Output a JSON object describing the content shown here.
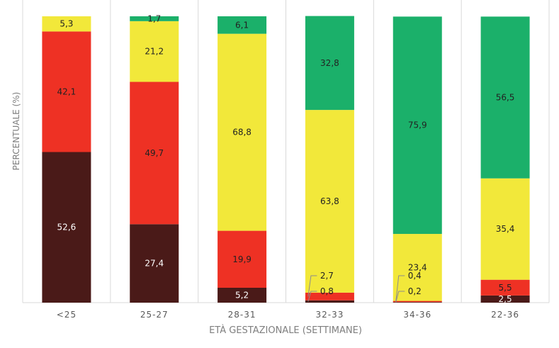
{
  "chart_data": {
    "type": "bar",
    "stacked": true,
    "title": "",
    "xlabel": "ETÀ GESTAZIONALE (SETTIMANE)",
    "ylabel": "PERCENTUALE (%)",
    "ylim": [
      0,
      100
    ],
    "categories": [
      "<25",
      "25-27",
      "28-31",
      "32-33",
      "34-36",
      "22-36"
    ],
    "series": [
      {
        "name": "dark-red",
        "color": "#4a1a18",
        "values": [
          52.6,
          27.4,
          5.2,
          0.8,
          0.2,
          2.5
        ],
        "labels": [
          "52,6",
          "27,4",
          "5,2",
          "",
          "",
          "2,5"
        ]
      },
      {
        "name": "red",
        "color": "#ee3124",
        "values": [
          42.1,
          49.7,
          19.9,
          2.7,
          0.4,
          5.5
        ],
        "labels": [
          "42,1",
          "49,7",
          "19,9",
          "",
          "",
          "5,5"
        ]
      },
      {
        "name": "yellow",
        "color": "#f2e83a",
        "values": [
          5.3,
          21.2,
          68.8,
          63.8,
          23.4,
          35.4
        ],
        "labels": [
          "5,3",
          "21,2",
          "68,8",
          "63,8",
          "23,4",
          "35,4"
        ]
      },
      {
        "name": "green",
        "color": "#1bb06a",
        "values": [
          0,
          1.7,
          6.1,
          32.8,
          75.9,
          56.5
        ],
        "labels": [
          "",
          "1,7",
          "6,1",
          "32,8",
          "75,9",
          "56,5"
        ]
      }
    ],
    "callouts": [
      {
        "category": "32-33",
        "series": "dark-red",
        "label": "0,8"
      },
      {
        "category": "32-33",
        "series": "red",
        "label": "2,7"
      },
      {
        "category": "34-36",
        "series": "dark-red",
        "label": "0,2"
      },
      {
        "category": "34-36",
        "series": "red",
        "label": "0,4"
      }
    ]
  }
}
